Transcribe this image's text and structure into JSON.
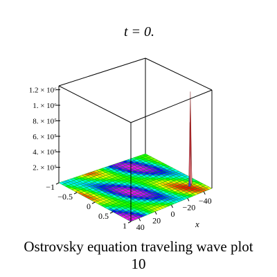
{
  "chart_data": {
    "type": "surface3d",
    "title": "t = 0.",
    "xlabel": "x",
    "ylabel": "",
    "zlabel": "",
    "x_ticks": [
      "40",
      "20",
      "0",
      "−20",
      "−40"
    ],
    "x_tick_values": [
      40,
      20,
      0,
      -20,
      -40
    ],
    "y_ticks": [
      "−1",
      "−0.5",
      "0",
      "0.5",
      "1"
    ],
    "y_tick_values": [
      -1,
      -0.5,
      0,
      0.5,
      1
    ],
    "z_ticks": [
      "2. × 10⁵",
      "4. × 10⁵",
      "6. × 10⁵",
      "8. × 10⁵",
      "1. × 10⁶",
      "1.2 × 10⁶"
    ],
    "z_tick_values": [
      200000,
      400000,
      600000,
      800000,
      1000000,
      1200000
    ],
    "x_range": [
      -50,
      50
    ],
    "y_range": [
      -1,
      1
    ],
    "z_range": [
      0,
      1250000
    ],
    "colorscheme": "rainbow (hue by z)",
    "wireframe_color": "#00a000",
    "peak": {
      "x": -40,
      "y": 0.6,
      "z": 1200000
    }
  },
  "caption": {
    "line1": "Ostrovsky equation  traveling wave plot",
    "line2": "10"
  }
}
